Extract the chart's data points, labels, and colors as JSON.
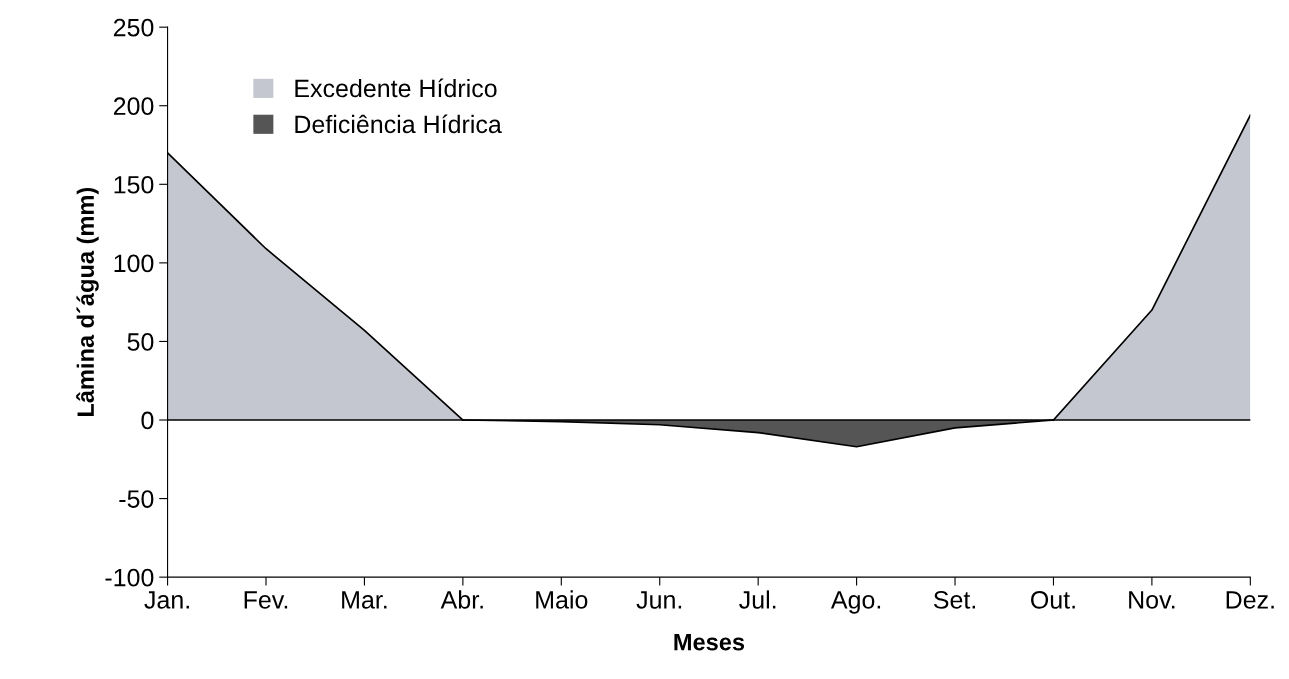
{
  "chart_data": {
    "type": "area",
    "xlabel": "Meses",
    "ylabel": "Lâmina d´água (mm)",
    "categories": [
      "Jan.",
      "Fev.",
      "Mar.",
      "Abr.",
      "Maio",
      "Jun.",
      "Jul.",
      "Ago.",
      "Set.",
      "Out.",
      "Nov.",
      "Dez."
    ],
    "series": [
      {
        "name": "Excedente Hídrico",
        "color": "#c5c7d0",
        "values": [
          170,
          109,
          57,
          0,
          null,
          null,
          null,
          null,
          null,
          0,
          70,
          194
        ]
      },
      {
        "name": "Deficiência Hídrica",
        "color": "#555555",
        "values": [
          null,
          null,
          null,
          0,
          -1,
          -3,
          -8,
          -17,
          -5,
          0,
          null,
          null
        ]
      }
    ],
    "ylim": [
      -100,
      250
    ],
    "yticks": [
      -100,
      -50,
      0,
      50,
      100,
      150,
      200,
      250
    ],
    "ref_lines": [
      {
        "axis": "y",
        "value": 0,
        "color": "#000000"
      }
    ],
    "legend": "top left",
    "grid": false
  }
}
